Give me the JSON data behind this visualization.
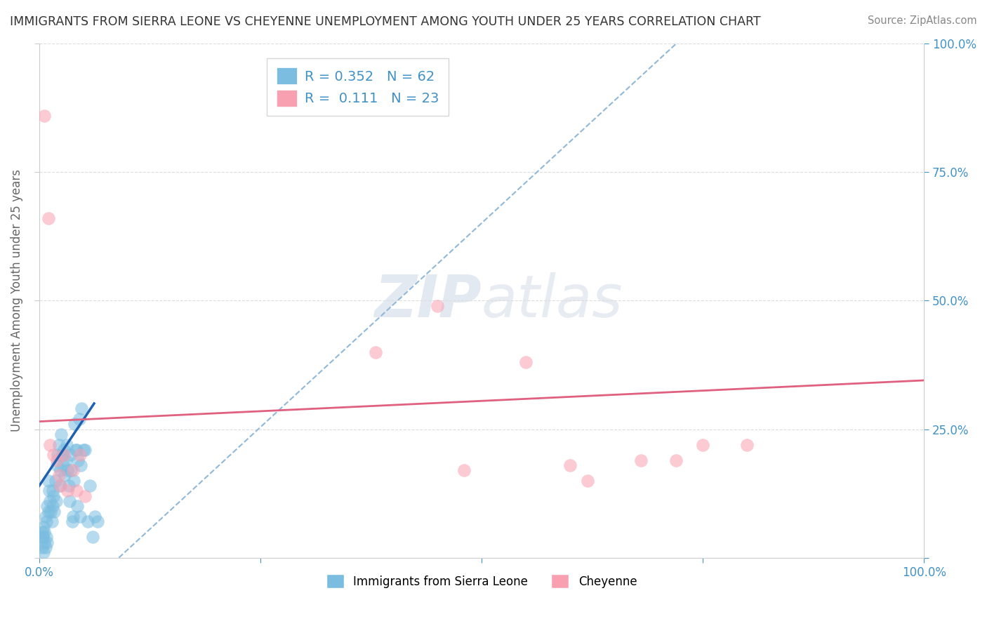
{
  "title": "IMMIGRANTS FROM SIERRA LEONE VS CHEYENNE UNEMPLOYMENT AMONG YOUTH UNDER 25 YEARS CORRELATION CHART",
  "source": "Source: ZipAtlas.com",
  "ylabel": "Unemployment Among Youth under 25 years",
  "xlim": [
    0,
    1.0
  ],
  "ylim": [
    0,
    1.0
  ],
  "background_color": "#ffffff",
  "grid_color": "#dddddd",
  "blue_color": "#7bbde0",
  "pink_color": "#f8a0b0",
  "blue_line_color": "#2060b0",
  "pink_line_color": "#e06080",
  "dashed_line_color": "#90b8d8",
  "blue_points_x": [
    0.003,
    0.004,
    0.005,
    0.006,
    0.007,
    0.008,
    0.009,
    0.01,
    0.01,
    0.011,
    0.012,
    0.013,
    0.014,
    0.015,
    0.015,
    0.016,
    0.017,
    0.018,
    0.019,
    0.02,
    0.021,
    0.022,
    0.023,
    0.024,
    0.025,
    0.026,
    0.027,
    0.028,
    0.029,
    0.03,
    0.031,
    0.032,
    0.033,
    0.034,
    0.035,
    0.036,
    0.037,
    0.038,
    0.039,
    0.04,
    0.041,
    0.042,
    0.043,
    0.044,
    0.045,
    0.046,
    0.047,
    0.048,
    0.05,
    0.052,
    0.055,
    0.057,
    0.06,
    0.063,
    0.066,
    0.003,
    0.004,
    0.005,
    0.006,
    0.007,
    0.008,
    0.009
  ],
  "blue_points_y": [
    0.05,
    0.04,
    0.06,
    0.05,
    0.08,
    0.07,
    0.1,
    0.09,
    0.15,
    0.13,
    0.11,
    0.09,
    0.07,
    0.1,
    0.13,
    0.12,
    0.09,
    0.15,
    0.11,
    0.18,
    0.2,
    0.22,
    0.14,
    0.17,
    0.24,
    0.2,
    0.18,
    0.21,
    0.16,
    0.19,
    0.22,
    0.17,
    0.14,
    0.11,
    0.2,
    0.17,
    0.07,
    0.08,
    0.15,
    0.26,
    0.21,
    0.21,
    0.1,
    0.19,
    0.27,
    0.08,
    0.18,
    0.29,
    0.21,
    0.21,
    0.07,
    0.14,
    0.04,
    0.08,
    0.07,
    0.02,
    0.04,
    0.01,
    0.03,
    0.02,
    0.04,
    0.03
  ],
  "pink_points_x": [
    0.006,
    0.01,
    0.012,
    0.016,
    0.02,
    0.022,
    0.024,
    0.028,
    0.032,
    0.038,
    0.042,
    0.046,
    0.052,
    0.38,
    0.45,
    0.6,
    0.68,
    0.75,
    0.55,
    0.48,
    0.62,
    0.72,
    0.8
  ],
  "pink_points_y": [
    0.86,
    0.66,
    0.22,
    0.2,
    0.19,
    0.16,
    0.14,
    0.2,
    0.13,
    0.17,
    0.13,
    0.2,
    0.12,
    0.4,
    0.49,
    0.18,
    0.19,
    0.22,
    0.38,
    0.17,
    0.15,
    0.19,
    0.22
  ],
  "blue_line_x0": 0.0,
  "blue_line_y0": 0.14,
  "blue_line_x1": 0.062,
  "blue_line_y1": 0.3,
  "dash_line_x0": 0.09,
  "dash_line_y0": 0.0,
  "dash_line_x1": 0.72,
  "dash_line_y1": 1.0,
  "pink_line_x0": 0.0,
  "pink_line_y0": 0.265,
  "pink_line_x1": 1.0,
  "pink_line_y1": 0.345
}
